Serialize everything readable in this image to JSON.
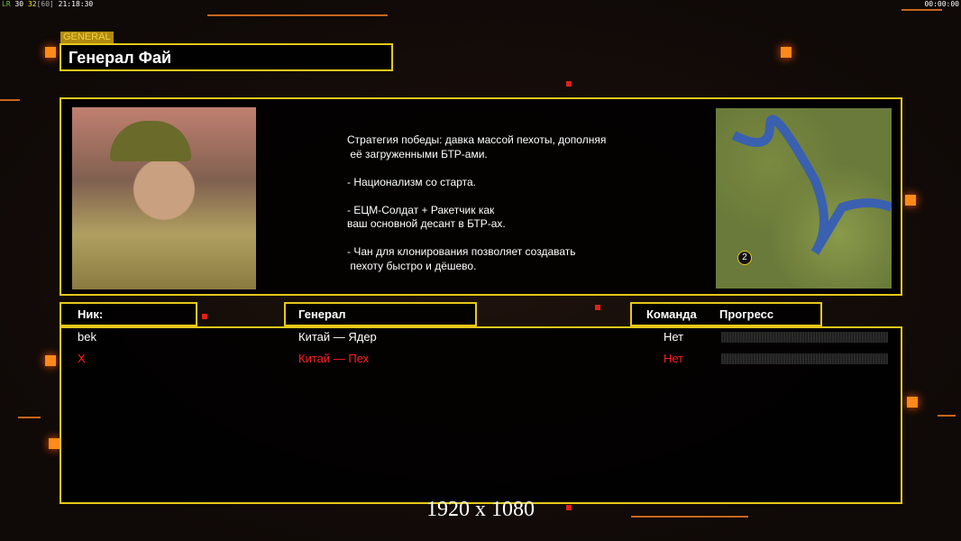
{
  "hud": {
    "left_green": "LR",
    "fps1": "30",
    "fps2": "32",
    "fps_max": "[60]",
    "clock": "21:18:30",
    "timer": "00:00:00"
  },
  "header": {
    "tag": "GENERAL",
    "title": "Генерал Фай"
  },
  "general": {
    "description": "Стратегия победы: давка массой пехоты, дополняя\n её загруженными БТР-ами.\n\n- Национализм со старта.\n\n- ЕЦМ-Солдат + Ракетчик как\nваш основной десант в БТР-ах.\n\n- Чан для клонирования позволяет создавать\n пехоту быстро и дёшево.",
    "map_marker": "2"
  },
  "table": {
    "headers": {
      "nick": "Ник:",
      "general": "Генерал",
      "team": "Команда",
      "progress": "Прогресс"
    },
    "rows": [
      {
        "nick": "bek",
        "general": "Китай — Ядер",
        "team": "Нет",
        "progress": 0,
        "color": "#ffffff"
      },
      {
        "nick": "X",
        "general": "Китай — Пех",
        "team": "Нет",
        "progress": 0,
        "color": "#ff2020"
      }
    ]
  },
  "watermark": "1920 x 1080",
  "colors": {
    "accent": "#e6c81a",
    "orange": "#ff8a1a"
  }
}
